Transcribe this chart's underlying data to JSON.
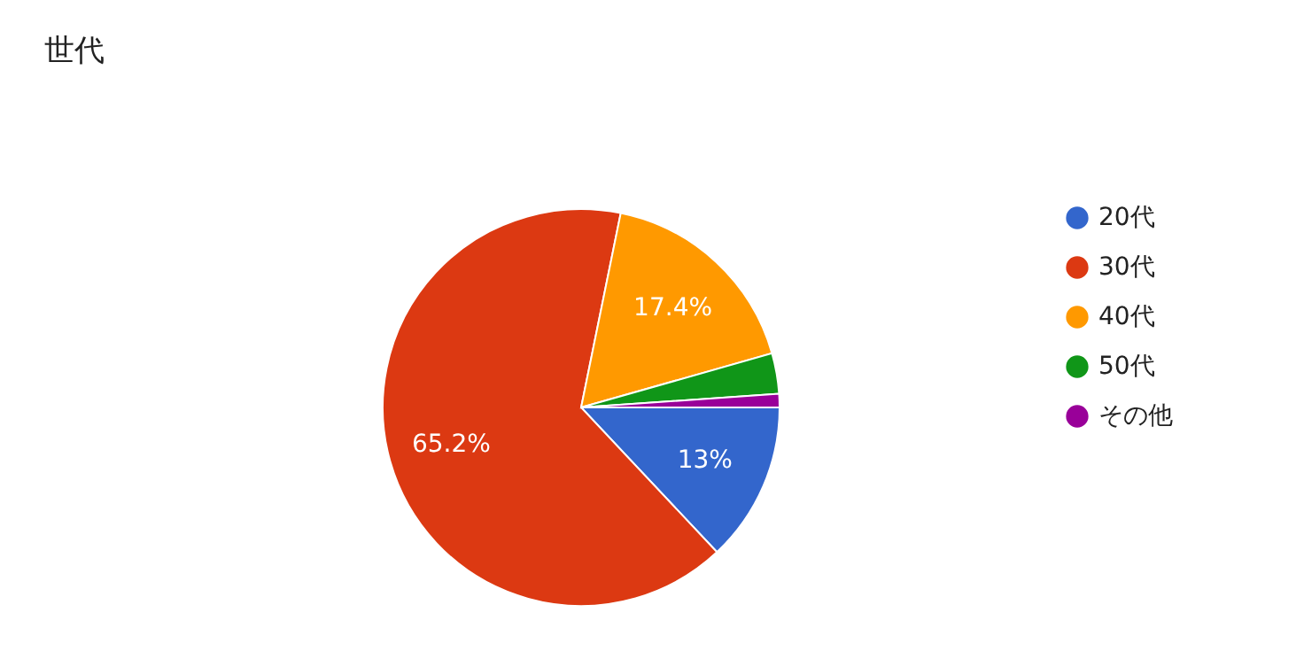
{
  "chart_data": {
    "type": "pie",
    "title": "世代",
    "categories": [
      "20代",
      "30代",
      "40代",
      "50代",
      "その他"
    ],
    "values": [
      13,
      65.2,
      17.4,
      3.3,
      1.1
    ],
    "colors": [
      "#3366cc",
      "#dc3912",
      "#ff9900",
      "#109618",
      "#990099"
    ],
    "value_labels": [
      "13%",
      "65.2%",
      "17.4%",
      null,
      null
    ],
    "legend": "right"
  }
}
